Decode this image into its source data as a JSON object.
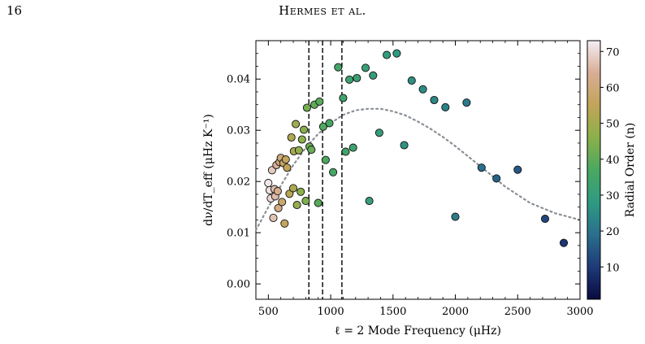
{
  "page": {
    "number": "16",
    "running_head": "Hermes et al."
  },
  "chart_data": {
    "type": "scatter",
    "title": "",
    "xlabel": "ℓ = 2 Mode Frequency (μHz)",
    "ylabel": "dν/dT_eff (μHz K⁻¹)",
    "colorbar_label": "Radial Order (n)",
    "xlim": [
      400,
      3000
    ],
    "ylim": [
      -0.003,
      0.0475
    ],
    "xticks": [
      500,
      1000,
      1500,
      2000,
      2500,
      3000
    ],
    "yticks": [
      0.0,
      0.01,
      0.02,
      0.03,
      0.04
    ],
    "ytick_labels": [
      "0.00",
      "0.01",
      "0.02",
      "0.03",
      "0.04"
    ],
    "colorbar_range": [
      1,
      73
    ],
    "colorbar_ticks": [
      10,
      20,
      30,
      40,
      50,
      60,
      70
    ],
    "vlines": [
      825,
      935,
      1090
    ],
    "curve": [
      {
        "x": 400,
        "y": 0.0105
      },
      {
        "x": 500,
        "y": 0.015
      },
      {
        "x": 600,
        "y": 0.0192
      },
      {
        "x": 700,
        "y": 0.0232
      },
      {
        "x": 800,
        "y": 0.0266
      },
      {
        "x": 900,
        "y": 0.0293
      },
      {
        "x": 1000,
        "y": 0.0314
      },
      {
        "x": 1100,
        "y": 0.033
      },
      {
        "x": 1200,
        "y": 0.0339
      },
      {
        "x": 1300,
        "y": 0.0342
      },
      {
        "x": 1400,
        "y": 0.0342
      },
      {
        "x": 1500,
        "y": 0.0337
      },
      {
        "x": 1600,
        "y": 0.0329
      },
      {
        "x": 1700,
        "y": 0.0317
      },
      {
        "x": 1800,
        "y": 0.0303
      },
      {
        "x": 1900,
        "y": 0.0287
      },
      {
        "x": 2000,
        "y": 0.0269
      },
      {
        "x": 2200,
        "y": 0.023
      },
      {
        "x": 2400,
        "y": 0.019
      },
      {
        "x": 2600,
        "y": 0.0158
      },
      {
        "x": 2800,
        "y": 0.0138
      },
      {
        "x": 3000,
        "y": 0.0125
      }
    ],
    "points": [
      {
        "x": 500,
        "y": 0.0197,
        "n": 72
      },
      {
        "x": 510,
        "y": 0.0183,
        "n": 71
      },
      {
        "x": 520,
        "y": 0.0167,
        "n": 70
      },
      {
        "x": 530,
        "y": 0.0222,
        "n": 68
      },
      {
        "x": 540,
        "y": 0.0129,
        "n": 67
      },
      {
        "x": 550,
        "y": 0.0185,
        "n": 66
      },
      {
        "x": 555,
        "y": 0.0171,
        "n": 66
      },
      {
        "x": 565,
        "y": 0.0232,
        "n": 64
      },
      {
        "x": 575,
        "y": 0.0181,
        "n": 63
      },
      {
        "x": 580,
        "y": 0.0148,
        "n": 62
      },
      {
        "x": 590,
        "y": 0.0238,
        "n": 61
      },
      {
        "x": 600,
        "y": 0.0246,
        "n": 60
      },
      {
        "x": 610,
        "y": 0.016,
        "n": 58
      },
      {
        "x": 620,
        "y": 0.0236,
        "n": 57
      },
      {
        "x": 630,
        "y": 0.0118,
        "n": 56
      },
      {
        "x": 640,
        "y": 0.0243,
        "n": 56
      },
      {
        "x": 650,
        "y": 0.0227,
        "n": 55
      },
      {
        "x": 670,
        "y": 0.0176,
        "n": 53
      },
      {
        "x": 685,
        "y": 0.0286,
        "n": 52
      },
      {
        "x": 700,
        "y": 0.0187,
        "n": 51
      },
      {
        "x": 705,
        "y": 0.0259,
        "n": 51
      },
      {
        "x": 720,
        "y": 0.0312,
        "n": 49
      },
      {
        "x": 730,
        "y": 0.0154,
        "n": 48
      },
      {
        "x": 745,
        "y": 0.0261,
        "n": 47
      },
      {
        "x": 760,
        "y": 0.018,
        "n": 46
      },
      {
        "x": 770,
        "y": 0.0282,
        "n": 46
      },
      {
        "x": 785,
        "y": 0.0301,
        "n": 45
      },
      {
        "x": 800,
        "y": 0.0162,
        "n": 44
      },
      {
        "x": 810,
        "y": 0.0344,
        "n": 43
      },
      {
        "x": 830,
        "y": 0.0268,
        "n": 42
      },
      {
        "x": 845,
        "y": 0.0262,
        "n": 41
      },
      {
        "x": 870,
        "y": 0.035,
        "n": 40
      },
      {
        "x": 900,
        "y": 0.0158,
        "n": 39
      },
      {
        "x": 910,
        "y": 0.0356,
        "n": 39
      },
      {
        "x": 940,
        "y": 0.0307,
        "n": 38
      },
      {
        "x": 960,
        "y": 0.0242,
        "n": 37
      },
      {
        "x": 990,
        "y": 0.0314,
        "n": 36
      },
      {
        "x": 1020,
        "y": 0.0218,
        "n": 36
      },
      {
        "x": 1060,
        "y": 0.0423,
        "n": 35
      },
      {
        "x": 1100,
        "y": 0.0363,
        "n": 34
      },
      {
        "x": 1120,
        "y": 0.0258,
        "n": 34
      },
      {
        "x": 1150,
        "y": 0.0399,
        "n": 33
      },
      {
        "x": 1180,
        "y": 0.0266,
        "n": 33
      },
      {
        "x": 1210,
        "y": 0.0402,
        "n": 32
      },
      {
        "x": 1280,
        "y": 0.0422,
        "n": 31
      },
      {
        "x": 1310,
        "y": 0.0162,
        "n": 31
      },
      {
        "x": 1340,
        "y": 0.0407,
        "n": 30
      },
      {
        "x": 1390,
        "y": 0.0295,
        "n": 30
      },
      {
        "x": 1450,
        "y": 0.0447,
        "n": 29
      },
      {
        "x": 1530,
        "y": 0.045,
        "n": 28
      },
      {
        "x": 1590,
        "y": 0.0271,
        "n": 27
      },
      {
        "x": 1650,
        "y": 0.0397,
        "n": 26
      },
      {
        "x": 1740,
        "y": 0.038,
        "n": 25
      },
      {
        "x": 1830,
        "y": 0.0359,
        "n": 24
      },
      {
        "x": 1920,
        "y": 0.0345,
        "n": 23
      },
      {
        "x": 2000,
        "y": 0.0131,
        "n": 22
      },
      {
        "x": 2090,
        "y": 0.0354,
        "n": 21
      },
      {
        "x": 2210,
        "y": 0.0227,
        "n": 19
      },
      {
        "x": 2330,
        "y": 0.0206,
        "n": 17
      },
      {
        "x": 2500,
        "y": 0.0223,
        "n": 15
      },
      {
        "x": 2720,
        "y": 0.0127,
        "n": 12
      },
      {
        "x": 2870,
        "y": 0.008,
        "n": 9
      }
    ],
    "colormap": [
      "#0a0a40",
      "#1e3a7a",
      "#2a6f8c",
      "#2f9a82",
      "#4aa860",
      "#8bb04a",
      "#c2a458",
      "#d8ad95",
      "#f4eef4"
    ],
    "curve_color": "#8a8f96",
    "vline_color": "#000000",
    "grid": false,
    "legend": "none"
  }
}
